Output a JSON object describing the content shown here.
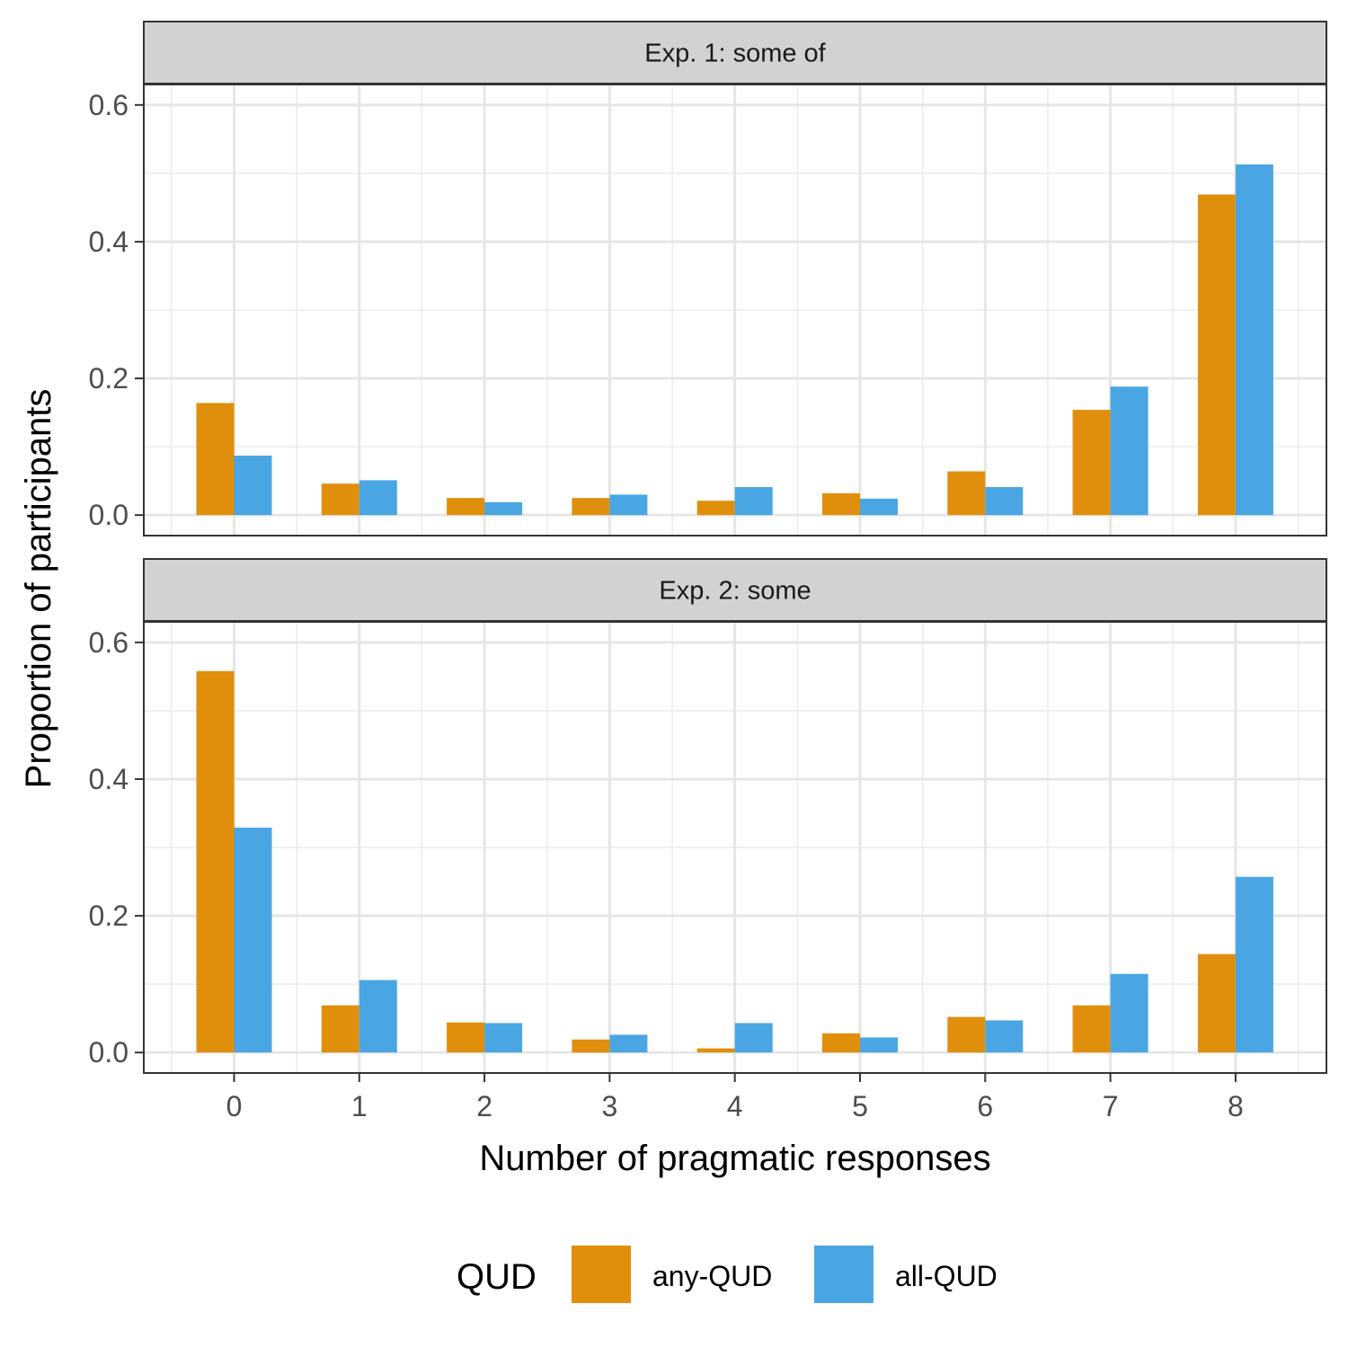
{
  "chart_data": {
    "type": "bar",
    "xlabel": "Number of pragmatic responses",
    "ylabel": "Proportion of participants",
    "categories": [
      "0",
      "1",
      "2",
      "3",
      "4",
      "5",
      "6",
      "7",
      "8"
    ],
    "ylim": [
      -0.03,
      0.63
    ],
    "yticks": [
      "0.0",
      "0.2",
      "0.4",
      "0.6"
    ],
    "grid": true,
    "legend": {
      "title": "QUD",
      "position": "bottom"
    },
    "series_colors": {
      "any-QUD": "#E08F0C",
      "all-QUD": "#4AA6E2"
    },
    "panels": [
      {
        "strip": "Exp. 1: some of",
        "series": [
          {
            "name": "any-QUD",
            "values": [
              0.164,
              0.046,
              0.025,
              0.025,
              0.021,
              0.032,
              0.064,
              0.154,
              0.469
            ]
          },
          {
            "name": "all-QUD",
            "values": [
              0.087,
              0.051,
              0.019,
              0.03,
              0.041,
              0.024,
              0.041,
              0.188,
              0.513
            ]
          }
        ]
      },
      {
        "strip": "Exp. 2: some",
        "series": [
          {
            "name": "any-QUD",
            "values": [
              0.558,
              0.069,
              0.044,
              0.019,
              0.006,
              0.028,
              0.052,
              0.069,
              0.144
            ]
          },
          {
            "name": "all-QUD",
            "values": [
              0.329,
              0.106,
              0.043,
              0.026,
              0.043,
              0.022,
              0.047,
              0.115,
              0.257
            ]
          }
        ]
      }
    ]
  }
}
